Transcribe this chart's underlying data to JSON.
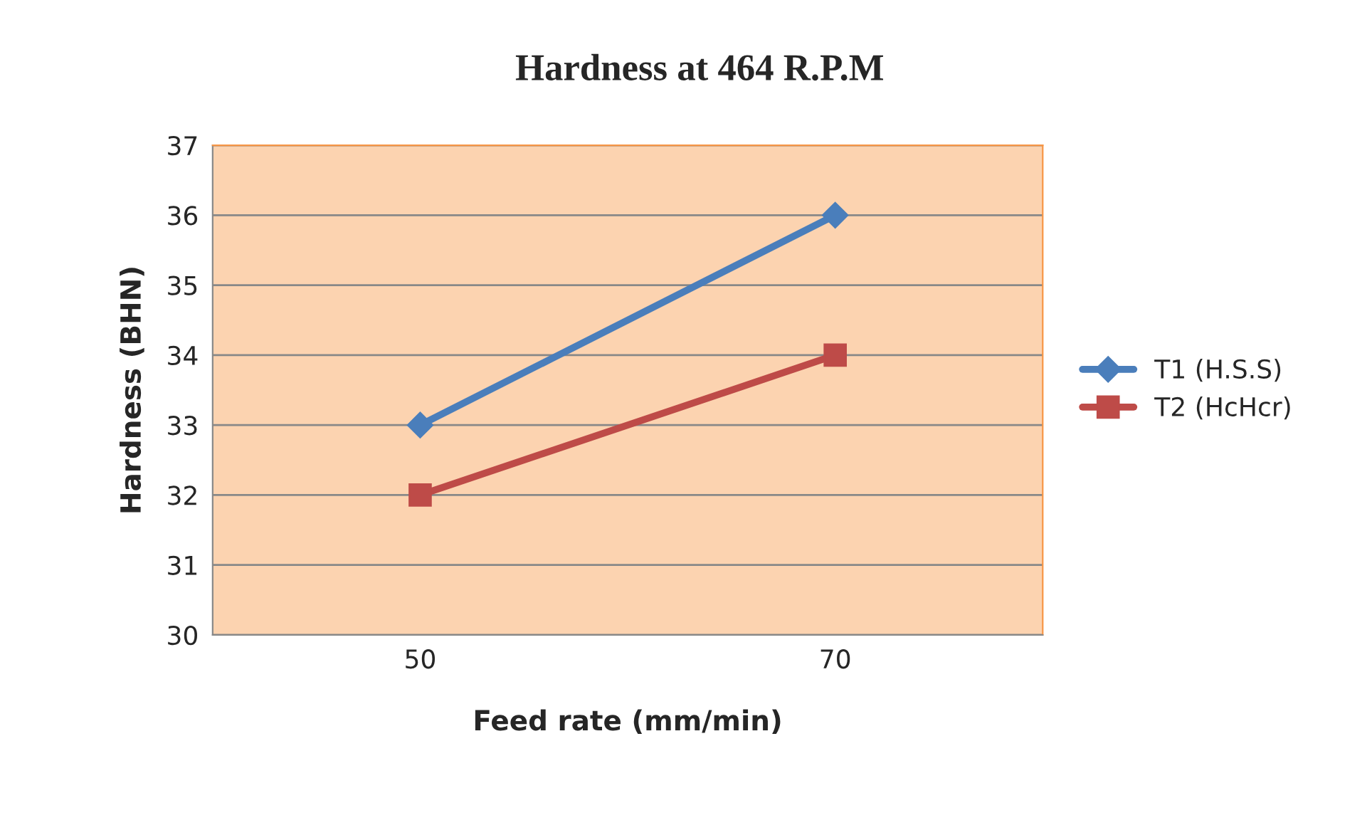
{
  "chart_data": {
    "type": "line",
    "title": "Hardness at 464 R.P.M",
    "xlabel": "Feed rate (mm/min)",
    "ylabel": "Hardness (BHN)",
    "categories": [
      "50",
      "70"
    ],
    "series": [
      {
        "name": "T1 (H.S.S)",
        "color": "#4a7ebb",
        "values": [
          33,
          36
        ],
        "marker": "diamond"
      },
      {
        "name": "T2 (HcHcr)",
        "color": "#be4b48",
        "values": [
          32,
          34
        ],
        "marker": "square"
      }
    ],
    "ylim": [
      30,
      37
    ],
    "yticks": [
      30,
      31,
      32,
      33,
      34,
      35,
      36,
      37
    ],
    "grid": "y",
    "legend": "right",
    "line_style": "solid"
  }
}
